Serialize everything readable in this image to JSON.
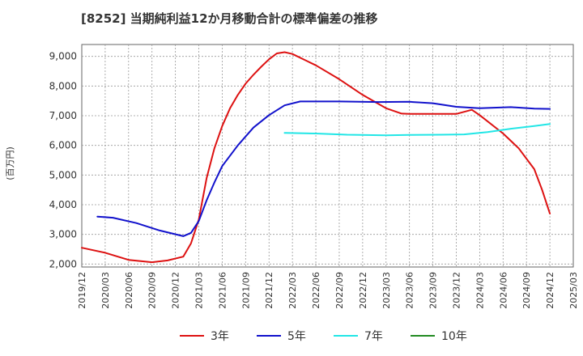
{
  "chart_data": {
    "type": "line",
    "title": "[8252]  当期純利益12か月移動合計の標準偏差の推移",
    "ylabel": "(百万円)",
    "xlabel": "",
    "ylim": [
      1900,
      9400
    ],
    "yticks": [
      2000,
      3000,
      4000,
      5000,
      6000,
      7000,
      8000,
      9000
    ],
    "ytick_labels": [
      "2,000",
      "3,000",
      "4,000",
      "5,000",
      "6,000",
      "7,000",
      "8,000",
      "9,000"
    ],
    "x_start": "2019-12",
    "x_end": "2025-03",
    "xtick_labels": [
      "2019/12",
      "2020/03",
      "2020/06",
      "2020/09",
      "2020/12",
      "2021/03",
      "2021/06",
      "2021/09",
      "2021/12",
      "2022/03",
      "2022/06",
      "2022/09",
      "2022/12",
      "2023/03",
      "2023/06",
      "2023/09",
      "2023/12",
      "2024/03",
      "2024/06",
      "2024/09",
      "2024/12",
      "2025/03"
    ],
    "grid": true,
    "legend_position": "bottom",
    "series": [
      {
        "name": "3年",
        "color": "#dd1111",
        "points": [
          {
            "x": "2019-12",
            "y": 2550
          },
          {
            "x": "2020-03",
            "y": 2380
          },
          {
            "x": "2020-06",
            "y": 2140
          },
          {
            "x": "2020-09",
            "y": 2060
          },
          {
            "x": "2020-11",
            "y": 2120
          },
          {
            "x": "2021-01",
            "y": 2250
          },
          {
            "x": "2021-02",
            "y": 2700
          },
          {
            "x": "2021-03",
            "y": 3500
          },
          {
            "x": "2021-04",
            "y": 4900
          },
          {
            "x": "2021-05",
            "y": 5900
          },
          {
            "x": "2021-06",
            "y": 6650
          },
          {
            "x": "2021-07",
            "y": 7250
          },
          {
            "x": "2021-08",
            "y": 7700
          },
          {
            "x": "2021-09",
            "y": 8080
          },
          {
            "x": "2021-10",
            "y": 8380
          },
          {
            "x": "2021-11",
            "y": 8650
          },
          {
            "x": "2021-12",
            "y": 8900
          },
          {
            "x": "2022-01",
            "y": 9100
          },
          {
            "x": "2022-02",
            "y": 9140
          },
          {
            "x": "2022-03",
            "y": 9080
          },
          {
            "x": "2022-06",
            "y": 8700
          },
          {
            "x": "2022-09",
            "y": 8230
          },
          {
            "x": "2022-12",
            "y": 7700
          },
          {
            "x": "2023-03",
            "y": 7250
          },
          {
            "x": "2023-05",
            "y": 7070
          },
          {
            "x": "2023-06",
            "y": 7060
          },
          {
            "x": "2023-09",
            "y": 7060
          },
          {
            "x": "2023-12",
            "y": 7060
          },
          {
            "x": "2024-02",
            "y": 7200
          },
          {
            "x": "2024-03",
            "y": 7020
          },
          {
            "x": "2024-06",
            "y": 6400
          },
          {
            "x": "2024-08",
            "y": 5900
          },
          {
            "x": "2024-10",
            "y": 5200
          },
          {
            "x": "2024-11",
            "y": 4500
          },
          {
            "x": "2024-12",
            "y": 3700
          }
        ]
      },
      {
        "name": "5年",
        "color": "#1111cc",
        "points": [
          {
            "x": "2020-02",
            "y": 3600
          },
          {
            "x": "2020-04",
            "y": 3560
          },
          {
            "x": "2020-07",
            "y": 3380
          },
          {
            "x": "2020-10",
            "y": 3130
          },
          {
            "x": "2021-01",
            "y": 2940
          },
          {
            "x": "2021-02",
            "y": 3050
          },
          {
            "x": "2021-03",
            "y": 3450
          },
          {
            "x": "2021-04",
            "y": 4150
          },
          {
            "x": "2021-05",
            "y": 4750
          },
          {
            "x": "2021-06",
            "y": 5300
          },
          {
            "x": "2021-08",
            "y": 6000
          },
          {
            "x": "2021-10",
            "y": 6600
          },
          {
            "x": "2021-12",
            "y": 7020
          },
          {
            "x": "2022-02",
            "y": 7350
          },
          {
            "x": "2022-04",
            "y": 7480
          },
          {
            "x": "2022-09",
            "y": 7480
          },
          {
            "x": "2023-02",
            "y": 7460
          },
          {
            "x": "2023-06",
            "y": 7470
          },
          {
            "x": "2023-09",
            "y": 7420
          },
          {
            "x": "2023-12",
            "y": 7300
          },
          {
            "x": "2024-03",
            "y": 7250
          },
          {
            "x": "2024-07",
            "y": 7290
          },
          {
            "x": "2024-10",
            "y": 7240
          },
          {
            "x": "2024-12",
            "y": 7230
          }
        ]
      },
      {
        "name": "7年",
        "color": "#22e6e6",
        "points": [
          {
            "x": "2022-02",
            "y": 6420
          },
          {
            "x": "2022-06",
            "y": 6400
          },
          {
            "x": "2022-10",
            "y": 6360
          },
          {
            "x": "2023-03",
            "y": 6340
          },
          {
            "x": "2023-06",
            "y": 6350
          },
          {
            "x": "2023-10",
            "y": 6360
          },
          {
            "x": "2024-01",
            "y": 6370
          },
          {
            "x": "2024-04",
            "y": 6450
          },
          {
            "x": "2024-07",
            "y": 6560
          },
          {
            "x": "2024-10",
            "y": 6650
          },
          {
            "x": "2024-12",
            "y": 6720
          }
        ]
      },
      {
        "name": "10年",
        "color": "#228b22",
        "points": []
      }
    ]
  }
}
